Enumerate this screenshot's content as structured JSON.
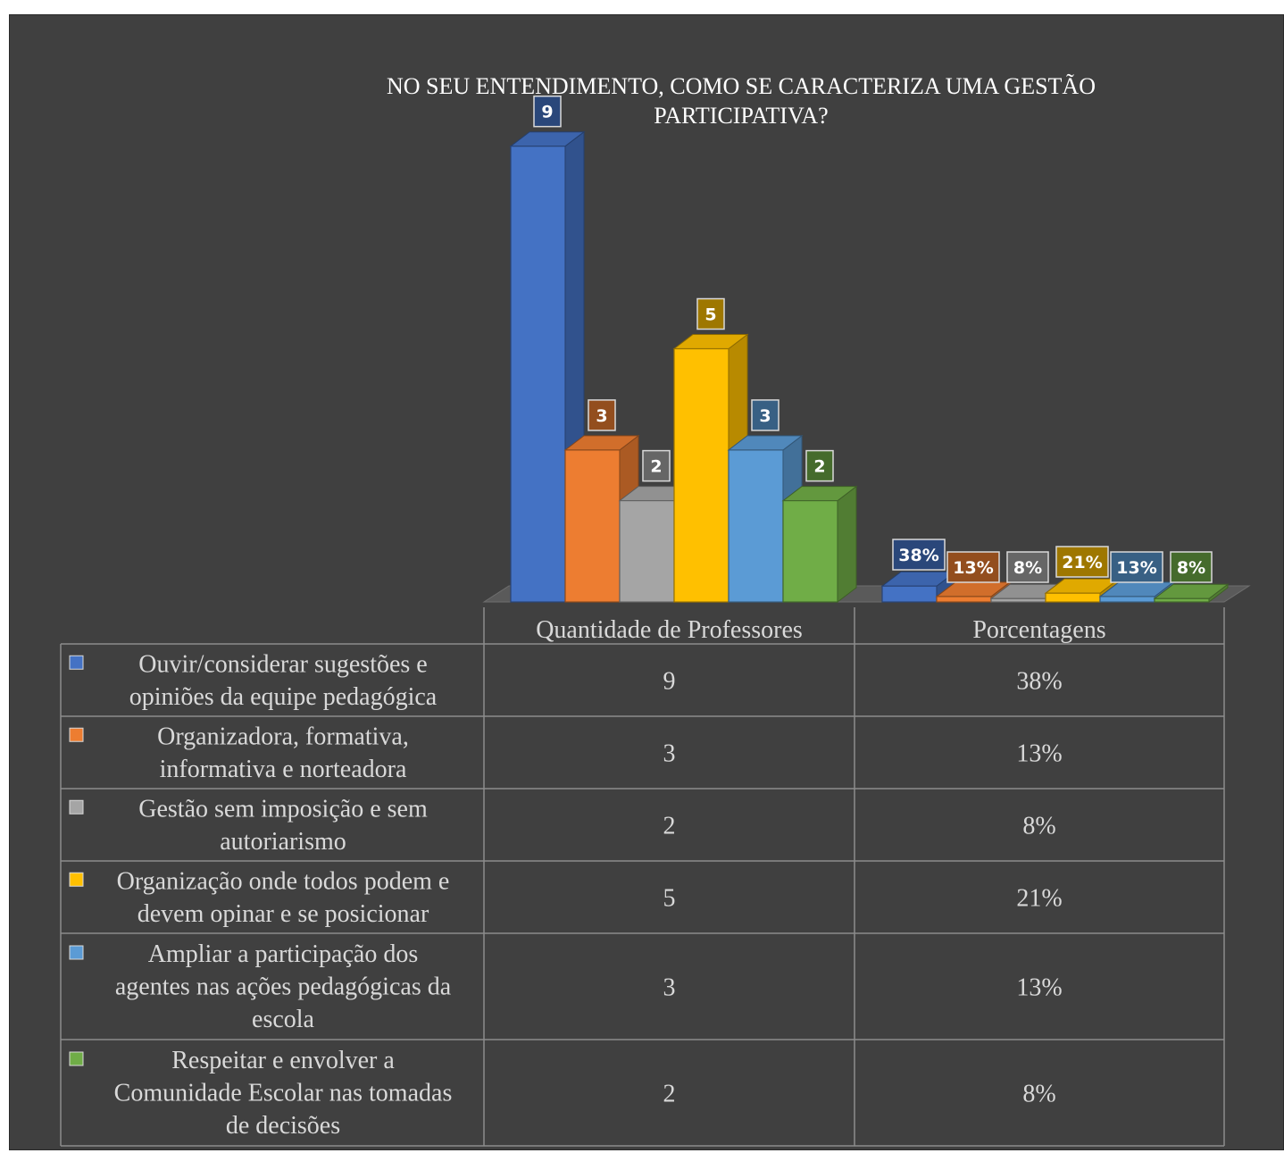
{
  "chart_data": {
    "type": "bar",
    "title_lines": [
      "NO SEU ENTENDIMENTO, COMO SE   CARACTERIZA UMA GESTÃO",
      "PARTICIPATIVA?"
    ],
    "categories": [
      "Quantidade de Professores",
      "Porcentagens"
    ],
    "series": [
      {
        "name_lines": [
          "Ouvir/considerar sugestões e",
          "opiniões da equipe pedagógica"
        ],
        "values": [
          9,
          0.38
        ],
        "labels": [
          "9",
          "38%"
        ],
        "color": "#4472c4"
      },
      {
        "name_lines": [
          "Organizadora, formativa,",
          "informativa e norteadora"
        ],
        "values": [
          3,
          0.13
        ],
        "labels": [
          "3",
          "13%"
        ],
        "color": "#ed7d31"
      },
      {
        "name_lines": [
          "Gestão sem imposição e sem",
          "autoriarismo"
        ],
        "values": [
          2,
          0.08
        ],
        "labels": [
          "2",
          "8%"
        ],
        "color": "#a5a5a5"
      },
      {
        "name_lines": [
          "Organização onde todos podem e",
          "devem opinar e se posicionar"
        ],
        "values": [
          5,
          0.21
        ],
        "labels": [
          "5",
          "21%"
        ],
        "color": "#ffc000"
      },
      {
        "name_lines": [
          "Ampliar a participação dos",
          "agentes nas ações pedagógicas da",
          "escola"
        ],
        "values": [
          3,
          0.13
        ],
        "labels": [
          "3",
          "13%"
        ],
        "color": "#5b9bd5"
      },
      {
        "name_lines": [
          "Respeitar e envolver a",
          "Comunidade Escolar nas tomadas",
          "de decisões"
        ],
        "values": [
          2,
          0.08
        ],
        "labels": [
          "2",
          "8%"
        ],
        "color": "#70ad47"
      }
    ],
    "ylim": [
      0,
      9
    ],
    "grid": false,
    "legend": "data-table"
  }
}
